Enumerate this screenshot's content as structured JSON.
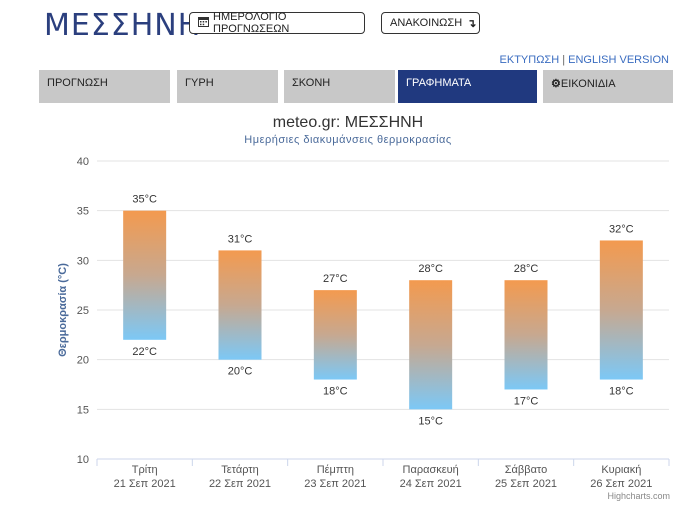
{
  "header": {
    "site_title": "ΜΕΣΣΗΝΗ",
    "calendar_button": "ΗΜΕΡΟΛΟΓΙΟ ΠΡΟΓΝΩΣΕΩΝ",
    "announcement_button": "ΑΝΑΚΟΙΝΩΣΗ",
    "print_link": "ΕΚΤΥΠΩΣΗ",
    "english_link": "ENGLISH VERSION",
    "link_separator": "|"
  },
  "tabs": [
    {
      "label": "ΠΡΟΓΝΩΣΗ",
      "active": false
    },
    {
      "label": "ΓΥΡΗ",
      "active": false
    },
    {
      "label": "ΣΚΟΝΗ",
      "active": false
    },
    {
      "label": "ΓΡΑΦΗΜΑΤΑ",
      "active": true
    },
    {
      "label": "ΕΙΚΟΝΙΔΙΑ",
      "active": false,
      "icon": "gear-icon"
    }
  ],
  "colors": {
    "brand": "#2b3f7e",
    "active_tab": "#20397f",
    "tab_bg": "#c8c8c8",
    "bar_top": "#f39a4f",
    "bar_bottom": "#7cc8f6"
  },
  "credits": "Highcharts.com",
  "chart_data": {
    "type": "bar",
    "subtype": "columnrange",
    "title": "meteo.gr: ΜΕΣΣΗΝΗ",
    "subtitle": "Ημερήσιες διακυμάνσεις θερμοκρασίας",
    "ylabel": "Θερμοκρασία (°C)",
    "ylim": [
      10,
      40
    ],
    "yticks": [
      10,
      15,
      20,
      25,
      30,
      35,
      40
    ],
    "grid": true,
    "categories": [
      {
        "day": "Τρίτη",
        "date": "21 Σεπ 2021"
      },
      {
        "day": "Τετάρτη",
        "date": "22 Σεπ 2021"
      },
      {
        "day": "Πέμπτη",
        "date": "23 Σεπ 2021"
      },
      {
        "day": "Παρασκευή",
        "date": "24 Σεπ 2021"
      },
      {
        "day": "Σάββατο",
        "date": "25 Σεπ 2021"
      },
      {
        "day": "Κυριακή",
        "date": "26 Σεπ 2021"
      }
    ],
    "low": [
      22,
      20,
      18,
      15,
      17,
      18
    ],
    "high": [
      35,
      31,
      27,
      28,
      28,
      32
    ],
    "unit": "°C"
  }
}
